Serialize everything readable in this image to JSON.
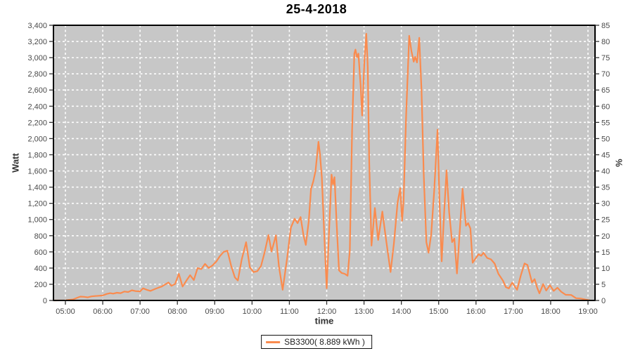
{
  "page": {
    "title": "25-4-2018"
  },
  "colors": {
    "line": "#FA8B4E",
    "plot_background": "#C7C7C7",
    "grid": "#FFFFFF",
    "plot_border": "#000000",
    "tick_text": "#4a4a4a"
  },
  "chart_data": {
    "type": "line",
    "title": "25-4-2018",
    "xlabel": "time",
    "ylabel_left": "Watt",
    "ylabel_right": "%",
    "grid": "white dashed gridlines on gray plot area",
    "legend_position": "bottom-center",
    "x_axis": {
      "start_hour": 5,
      "end_hour": 19,
      "tick_labels": [
        "05:00",
        "06:00",
        "07:00",
        "08:00",
        "09:00",
        "10:00",
        "11:00",
        "12:00",
        "13:00",
        "14:00",
        "15:00",
        "16:00",
        "17:00",
        "18:00",
        "19:00"
      ]
    },
    "y_left": {
      "min": 0,
      "max": 3400,
      "step": 200
    },
    "y_right": {
      "min": 0,
      "max": 85,
      "step": 5
    },
    "series": [
      {
        "name": "SB3300",
        "legend_label": "SB3300( 8.889 kWh )",
        "daily_energy_kwh": "8.889",
        "color": "#FA8B4E",
        "points_time_hour_watt": [
          [
            4.7,
            0
          ],
          [
            5.0,
            2
          ],
          [
            5.1,
            8
          ],
          [
            5.2,
            12
          ],
          [
            5.3,
            30
          ],
          [
            5.4,
            48
          ],
          [
            5.5,
            45
          ],
          [
            5.6,
            38
          ],
          [
            5.7,
            50
          ],
          [
            5.8,
            55
          ],
          [
            5.9,
            58
          ],
          [
            6.0,
            62
          ],
          [
            6.1,
            80
          ],
          [
            6.2,
            90
          ],
          [
            6.28,
            84
          ],
          [
            6.38,
            95
          ],
          [
            6.48,
            90
          ],
          [
            6.58,
            110
          ],
          [
            6.68,
            104
          ],
          [
            6.78,
            126
          ],
          [
            6.88,
            115
          ],
          [
            7.0,
            112
          ],
          [
            7.08,
            150
          ],
          [
            7.18,
            132
          ],
          [
            7.28,
            118
          ],
          [
            7.4,
            142
          ],
          [
            7.5,
            160
          ],
          [
            7.58,
            172
          ],
          [
            7.68,
            200
          ],
          [
            7.76,
            222
          ],
          [
            7.84,
            180
          ],
          [
            7.94,
            205
          ],
          [
            8.04,
            330
          ],
          [
            8.14,
            172
          ],
          [
            8.24,
            245
          ],
          [
            8.34,
            312
          ],
          [
            8.44,
            252
          ],
          [
            8.54,
            400
          ],
          [
            8.64,
            388
          ],
          [
            8.74,
            452
          ],
          [
            8.84,
            402
          ],
          [
            8.94,
            432
          ],
          [
            9.04,
            480
          ],
          [
            9.14,
            548
          ],
          [
            9.24,
            600
          ],
          [
            9.34,
            615
          ],
          [
            9.44,
            430
          ],
          [
            9.54,
            285
          ],
          [
            9.62,
            246
          ],
          [
            9.72,
            500
          ],
          [
            9.84,
            720
          ],
          [
            9.94,
            410
          ],
          [
            10.04,
            350
          ],
          [
            10.14,
            362
          ],
          [
            10.24,
            425
          ],
          [
            10.34,
            600
          ],
          [
            10.44,
            808
          ],
          [
            10.52,
            605
          ],
          [
            10.58,
            700
          ],
          [
            10.64,
            805
          ],
          [
            10.72,
            420
          ],
          [
            10.82,
            132
          ],
          [
            10.94,
            520
          ],
          [
            11.04,
            900
          ],
          [
            11.14,
            1010
          ],
          [
            11.22,
            955
          ],
          [
            11.3,
            1030
          ],
          [
            11.38,
            800
          ],
          [
            11.44,
            686
          ],
          [
            11.52,
            980
          ],
          [
            11.58,
            1380
          ],
          [
            11.64,
            1470
          ],
          [
            11.7,
            1600
          ],
          [
            11.78,
            1960
          ],
          [
            11.82,
            1810
          ],
          [
            11.87,
            1520
          ],
          [
            11.94,
            760
          ],
          [
            12.0,
            150
          ],
          [
            12.06,
            820
          ],
          [
            12.13,
            1555
          ],
          [
            12.17,
            1434
          ],
          [
            12.21,
            1523
          ],
          [
            12.27,
            920
          ],
          [
            12.33,
            372
          ],
          [
            12.4,
            340
          ],
          [
            12.48,
            330
          ],
          [
            12.56,
            305
          ],
          [
            12.62,
            620
          ],
          [
            12.68,
            2100
          ],
          [
            12.74,
            3050
          ],
          [
            12.77,
            3100
          ],
          [
            12.81,
            3005
          ],
          [
            12.85,
            3050
          ],
          [
            12.91,
            2650
          ],
          [
            12.95,
            2285
          ],
          [
            13.01,
            2950
          ],
          [
            13.06,
            3295
          ],
          [
            13.1,
            2880
          ],
          [
            13.14,
            1700
          ],
          [
            13.2,
            677
          ],
          [
            13.29,
            1142
          ],
          [
            13.38,
            747
          ],
          [
            13.49,
            1098
          ],
          [
            13.6,
            720
          ],
          [
            13.71,
            351
          ],
          [
            13.8,
            700
          ],
          [
            13.9,
            1210
          ],
          [
            13.97,
            1388
          ],
          [
            14.02,
            984
          ],
          [
            14.06,
            1230
          ],
          [
            14.13,
            2300
          ],
          [
            14.21,
            3270
          ],
          [
            14.27,
            3080
          ],
          [
            14.33,
            2950
          ],
          [
            14.37,
            3010
          ],
          [
            14.42,
            2940
          ],
          [
            14.48,
            3245
          ],
          [
            14.54,
            2600
          ],
          [
            14.6,
            1550
          ],
          [
            14.67,
            720
          ],
          [
            14.73,
            590
          ],
          [
            14.8,
            820
          ],
          [
            14.88,
            1350
          ],
          [
            14.97,
            2110
          ],
          [
            15.02,
            1250
          ],
          [
            15.08,
            483
          ],
          [
            15.15,
            1120
          ],
          [
            15.21,
            1608
          ],
          [
            15.28,
            1090
          ],
          [
            15.36,
            721
          ],
          [
            15.42,
            765
          ],
          [
            15.49,
            334
          ],
          [
            15.56,
            820
          ],
          [
            15.64,
            1380
          ],
          [
            15.73,
            923
          ],
          [
            15.79,
            955
          ],
          [
            15.85,
            890
          ],
          [
            15.91,
            466
          ],
          [
            15.99,
            520
          ],
          [
            16.07,
            571
          ],
          [
            16.14,
            552
          ],
          [
            16.2,
            590
          ],
          [
            16.3,
            525
          ],
          [
            16.4,
            508
          ],
          [
            16.5,
            455
          ],
          [
            16.6,
            330
          ],
          [
            16.72,
            246
          ],
          [
            16.8,
            165
          ],
          [
            16.88,
            149
          ],
          [
            16.97,
            220
          ],
          [
            17.04,
            172
          ],
          [
            17.1,
            132
          ],
          [
            17.2,
            310
          ],
          [
            17.3,
            457
          ],
          [
            17.38,
            438
          ],
          [
            17.5,
            222
          ],
          [
            17.57,
            264
          ],
          [
            17.64,
            155
          ],
          [
            17.7,
            88
          ],
          [
            17.8,
            202
          ],
          [
            17.88,
            122
          ],
          [
            17.98,
            188
          ],
          [
            18.08,
            118
          ],
          [
            18.18,
            158
          ],
          [
            18.28,
            108
          ],
          [
            18.4,
            70
          ],
          [
            18.55,
            68
          ],
          [
            18.68,
            28
          ],
          [
            18.8,
            24
          ],
          [
            18.92,
            12
          ],
          [
            19.05,
            2
          ]
        ]
      }
    ]
  }
}
